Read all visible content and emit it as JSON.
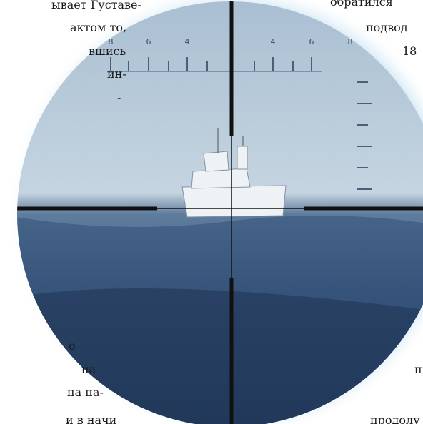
{
  "left_column": {
    "lines": [
      "ывает Густаве-",
      "актом то,",
      "вшись",
      "ин-",
      "-",
      "о",
      "на",
      "на на-",
      "и в начи"
    ]
  },
  "right_column": {
    "lines": [
      "обратился",
      "подвод",
      "18",
      "п",
      "продолу"
    ]
  },
  "image": {
    "scale_labels": [
      "8",
      "6",
      "4",
      "4",
      "6",
      "8"
    ]
  }
}
